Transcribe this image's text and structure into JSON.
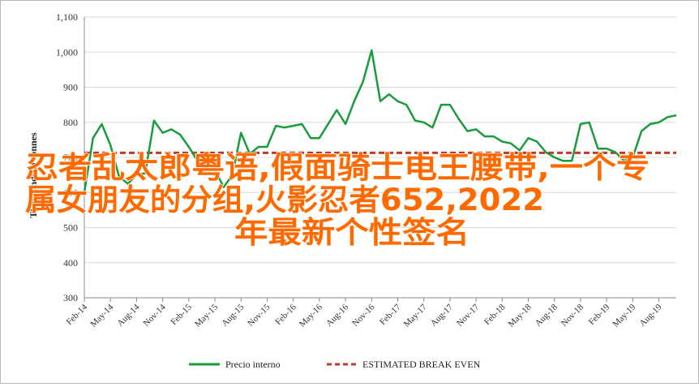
{
  "chart_data": {
    "type": "line",
    "title": "",
    "xlabel": "",
    "ylabel": "Thousands of tonnes",
    "ylim": [
      300,
      1100
    ],
    "yticks": [
      300,
      400,
      500,
      600,
      700,
      800,
      900,
      1000,
      1100
    ],
    "ytick_labels": [
      "300",
      "400",
      "500",
      "600",
      "700",
      "800",
      "900",
      "1,000",
      "1,100"
    ],
    "xtick_labels": [
      "Feb-14",
      "May-14",
      "Aug-14",
      "Nov-14",
      "Feb-15",
      "May-15",
      "Aug-15",
      "Nov-15",
      "Feb-16",
      "May-16",
      "Aug-16",
      "Nov-16",
      "Feb-17",
      "May-17",
      "Aug-17",
      "Nov-17",
      "Feb-18",
      "May-18",
      "Aug-18",
      "Nov-18",
      "Feb-19",
      "May-19",
      "Aug-19"
    ],
    "grid": "horizontal",
    "legend": "bottom",
    "series": [
      {
        "name": "Precio interno",
        "color": "#1a9b3c",
        "style": "solid",
        "x": [
          "Feb-14",
          "Mar-14",
          "Apr-14",
          "May-14",
          "Jun-14",
          "Jul-14",
          "Aug-14",
          "Sep-14",
          "Oct-14",
          "Nov-14",
          "Dec-14",
          "Jan-15",
          "Feb-15",
          "Mar-15",
          "Apr-15",
          "May-15",
          "Jun-15",
          "Jul-15",
          "Aug-15",
          "Sep-15",
          "Oct-15",
          "Nov-15",
          "Dec-15",
          "Jan-16",
          "Feb-16",
          "Mar-16",
          "Apr-16",
          "May-16",
          "Jun-16",
          "Jul-16",
          "Aug-16",
          "Sep-16",
          "Oct-16",
          "Nov-16",
          "Dec-16",
          "Jan-17",
          "Feb-17",
          "Mar-17",
          "Apr-17",
          "May-17",
          "Jun-17",
          "Jul-17",
          "Aug-17",
          "Sep-17",
          "Oct-17",
          "Nov-17",
          "Dec-17",
          "Jan-18",
          "Feb-18",
          "Mar-18",
          "Apr-18",
          "May-18",
          "Jun-18",
          "Jul-18",
          "Aug-18",
          "Sep-18",
          "Oct-18",
          "Nov-18",
          "Dec-18",
          "Jan-19",
          "Feb-19",
          "Mar-19",
          "Apr-19",
          "May-19",
          "Jun-19",
          "Jul-19",
          "Aug-19",
          "Sep-19",
          "Oct-19"
        ],
        "values": [
          600,
          755,
          795,
          735,
          645,
          625,
          650,
          655,
          805,
          770,
          780,
          765,
          730,
          690,
          690,
          665,
          615,
          650,
          770,
          710,
          730,
          730,
          790,
          785,
          790,
          795,
          755,
          755,
          795,
          835,
          795,
          860,
          915,
          1005,
          860,
          880,
          860,
          850,
          805,
          800,
          785,
          850,
          850,
          810,
          775,
          780,
          760,
          760,
          745,
          740,
          720,
          755,
          745,
          715,
          700,
          690,
          690,
          795,
          800,
          725,
          725,
          715,
          690,
          700,
          775,
          795,
          800,
          815,
          820
        ]
      },
      {
        "name": "ESTIMATED BREAK EVEN",
        "color": "#c0392b",
        "style": "dashed",
        "value": 713
      }
    ]
  },
  "overlay": {
    "line1": "忍者乱太郎粤语,假面骑士电王腰带,一个专",
    "line2": "属女朋友的分组,火影忍者652,2022",
    "line3": "年最新个性签名"
  }
}
